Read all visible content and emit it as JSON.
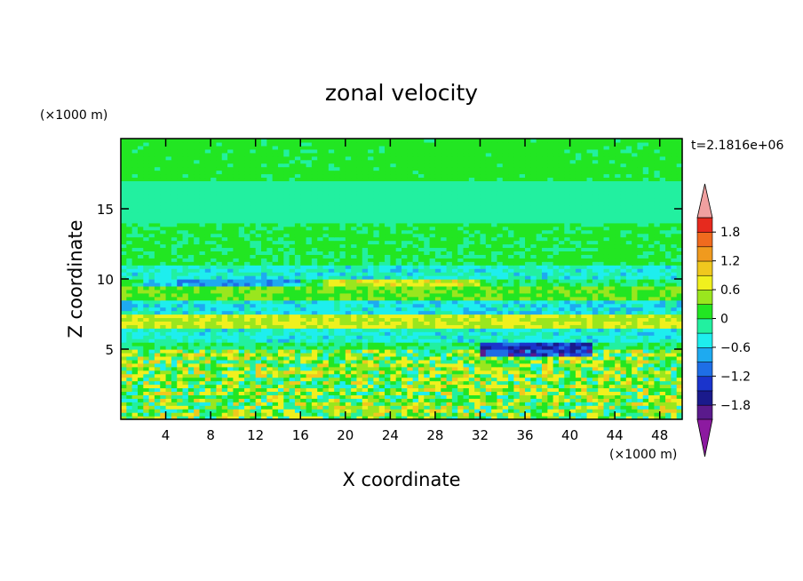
{
  "chart_data": {
    "type": "heatmap",
    "title": "zonal velocity",
    "xlabel": "X coordinate",
    "ylabel": "Z coordinate",
    "x_unit": "(×1000 m)",
    "y_unit": "(×1000 m)",
    "time_label": "t=2.1816e+06",
    "xlim": [
      0,
      50
    ],
    "ylim": [
      0,
      20
    ],
    "x_ticks": [
      4,
      8,
      12,
      16,
      20,
      24,
      28,
      32,
      36,
      40,
      44,
      48
    ],
    "y_ticks": [
      5,
      10,
      15
    ],
    "colorbar": {
      "levels": [
        -2.1,
        -1.8,
        -1.5,
        -1.2,
        -0.9,
        -0.6,
        -0.3,
        0,
        0.3,
        0.6,
        0.9,
        1.2,
        1.5,
        1.8,
        2.1
      ],
      "tick_labels": [
        "1.8",
        "1.2",
        "0.6",
        "0",
        "−0.6",
        "−1.2",
        "−1.8"
      ],
      "tick_values": [
        1.8,
        1.2,
        0.6,
        0,
        -0.6,
        -1.2,
        -1.8
      ],
      "colors": [
        "#5a1a8c",
        "#1a1a8c",
        "#1a34cc",
        "#1e6ee6",
        "#1eaaf0",
        "#1eeeee",
        "#22f0a0",
        "#22e622",
        "#9ae61e",
        "#f0f01e",
        "#f0c81e",
        "#f09a1e",
        "#f06a1e",
        "#e62a1e"
      ],
      "over_color": "#f0a0a0",
      "under_color": "#8c1aa0"
    },
    "bands": [
      {
        "z_range": [
          17,
          20
        ],
        "value": 0.1
      },
      {
        "z_range": [
          14,
          17
        ],
        "value": -0.15
      },
      {
        "z_range": [
          11,
          14
        ],
        "value": 0.05
      },
      {
        "z_range": [
          10,
          11
        ],
        "value": -0.35
      },
      {
        "z_range": [
          9.5,
          10
        ],
        "value": -0.8,
        "x_range": [
          2,
          16
        ]
      },
      {
        "z_range": [
          9.5,
          10
        ],
        "value": 0.7,
        "x_range": [
          18,
          32
        ]
      },
      {
        "z_range": [
          8.5,
          9.5
        ],
        "value": 0.3
      },
      {
        "z_range": [
          7.5,
          8.5
        ],
        "value": -0.45
      },
      {
        "z_range": [
          6.5,
          7.5
        ],
        "value": 0.6
      },
      {
        "z_range": [
          5.5,
          6.5
        ],
        "value": -0.35
      },
      {
        "z_range": [
          4.5,
          5.5
        ],
        "value": -1.4,
        "x_range": [
          32,
          42
        ]
      },
      {
        "z_range": [
          0,
          5
        ],
        "value": 0.3,
        "note_free": true
      }
    ]
  }
}
